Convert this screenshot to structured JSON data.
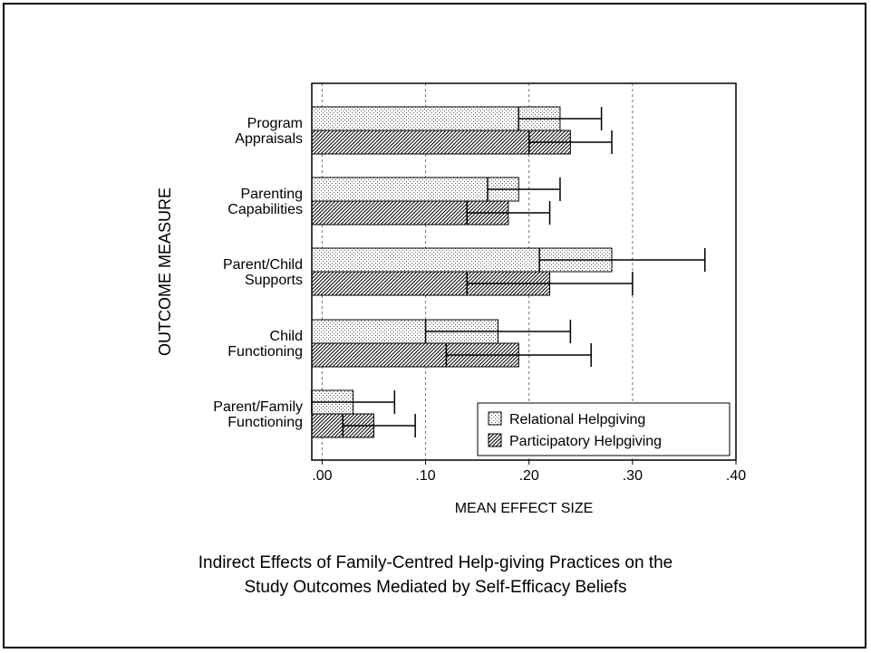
{
  "caption": {
    "line1": "Indirect Effects of Family-Centred Help-giving Practices on the",
    "line2": "Study Outcomes Mediated by Self-Efficacy Beliefs"
  },
  "chart_data": {
    "type": "bar",
    "orientation": "horizontal",
    "xlabel": "MEAN EFFECT SIZE",
    "ylabel": "OUTCOME MEASURE",
    "xlim": [
      -0.01,
      0.4
    ],
    "xticks": [
      0.0,
      0.1,
      0.2,
      0.3,
      0.4
    ],
    "xtick_labels": [
      ".00",
      ".10",
      ".20",
      ".30",
      ".40"
    ],
    "grid": "vertical dashed at .10, .20, .30",
    "legend_position": "bottom-right",
    "categories": [
      [
        "Program",
        "Appraisals"
      ],
      [
        "Parenting",
        "Capabilities"
      ],
      [
        "Parent/Child",
        "Supports"
      ],
      [
        "Child",
        "Functioning"
      ],
      [
        "Parent/Family",
        "Functioning"
      ]
    ],
    "series": [
      {
        "name": "Relational Helpgiving",
        "pattern": "dotted",
        "values": [
          0.23,
          0.19,
          0.28,
          0.17,
          0.03
        ],
        "ci_low": [
          0.19,
          0.16,
          0.21,
          0.1,
          -0.01
        ],
        "ci_high": [
          0.27,
          0.23,
          0.37,
          0.24,
          0.07
        ]
      },
      {
        "name": "Participatory Helpgiving",
        "pattern": "diagonal-hatch",
        "values": [
          0.24,
          0.18,
          0.22,
          0.19,
          0.05
        ],
        "ci_low": [
          0.2,
          0.14,
          0.14,
          0.12,
          0.02
        ],
        "ci_high": [
          0.28,
          0.22,
          0.3,
          0.26,
          0.09
        ]
      }
    ]
  }
}
